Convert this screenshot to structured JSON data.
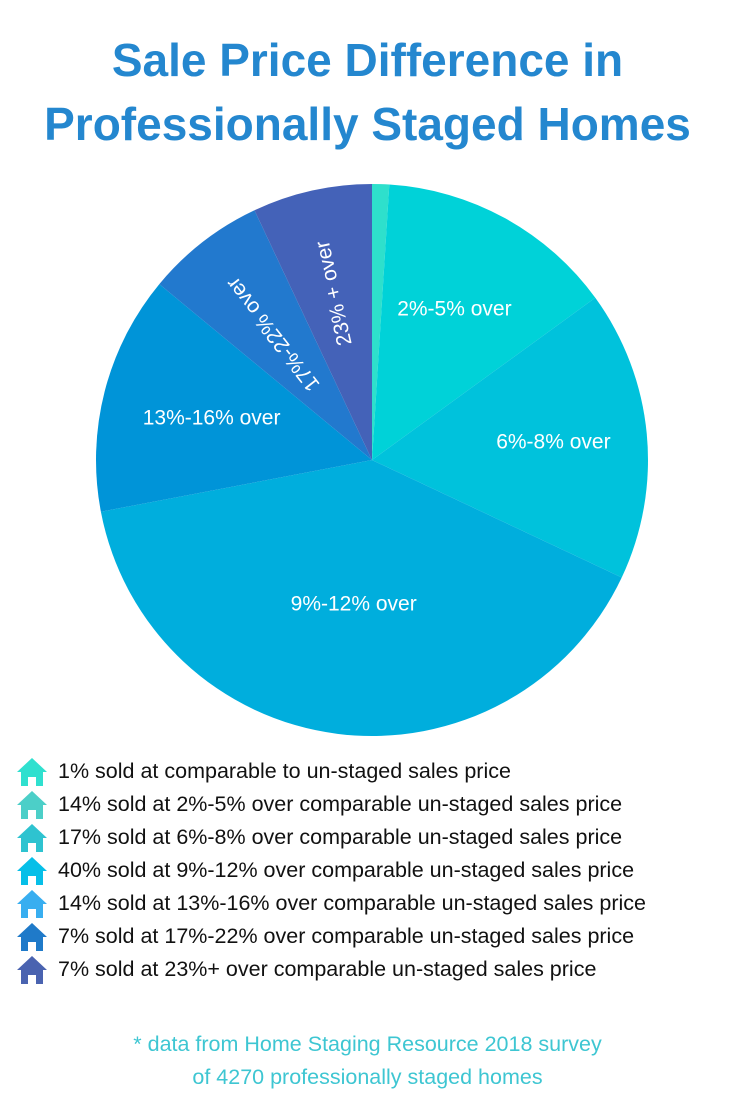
{
  "title": {
    "line1": "Sale Price Difference in",
    "line2": "Professionally Staged Homes"
  },
  "chart_data": {
    "type": "pie",
    "title": "Sale Price Difference in Professionally Staged Homes",
    "slices": [
      {
        "label": "",
        "value": 1,
        "color": "#2ee0cc"
      },
      {
        "label": "2%-5% over",
        "value": 14,
        "color": "#00d2d8"
      },
      {
        "label": "6%-8% over",
        "value": 17,
        "color": "#00c2dc"
      },
      {
        "label": "9%-12% over",
        "value": 40,
        "color": "#00aedd"
      },
      {
        "label": "13%-16% over",
        "value": 14,
        "color": "#0094d8"
      },
      {
        "label": "17%-22% over",
        "value": 7,
        "color": "#2279ce"
      },
      {
        "label": "23% + over",
        "value": 7,
        "color": "#4462b8"
      }
    ]
  },
  "legend": [
    {
      "text": "1% sold at comparable to un-staged sales price",
      "color": "#2fe0cf"
    },
    {
      "text": "14% sold at 2%-5% over comparable un-staged sales price",
      "color": "#4ccfc8"
    },
    {
      "text": "17% sold at 6%-8% over comparable un-staged sales price",
      "color": "#2ec3d0"
    },
    {
      "text": "40% sold at 9%-12% over comparable un-staged sales price",
      "color": "#06bfe8"
    },
    {
      "text": "14% sold at 13%-16% over comparable un-staged sales price",
      "color": "#38aef0"
    },
    {
      "text": "7% sold at 17%-22% over comparable un-staged sales price",
      "color": "#1f7ac9"
    },
    {
      "text": "7% sold at 23%+ over comparable un-staged sales price",
      "color": "#4a63b0"
    }
  ],
  "source": {
    "line1": "* data from Home Staging Resource 2018 survey",
    "line2": "of 4270 professionally staged homes"
  }
}
